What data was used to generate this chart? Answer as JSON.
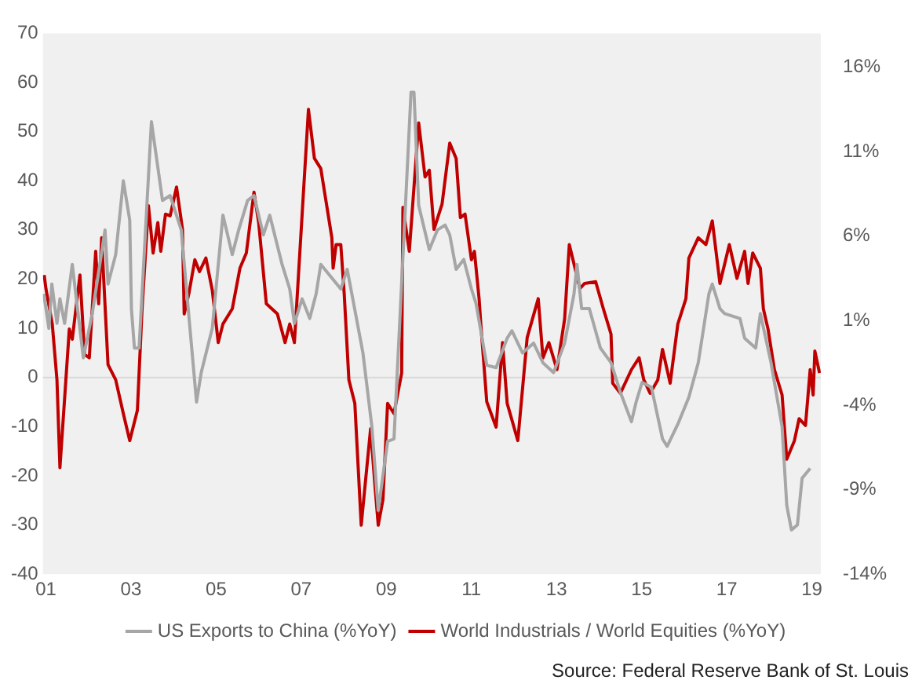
{
  "chart_data": {
    "type": "line",
    "annotations": [
      "Source: Federal Reserve Bank of St. Louis"
    ],
    "xlim": [
      2000.93,
      2019.21
    ],
    "xticks": [
      {
        "value": 2001,
        "label": "01"
      },
      {
        "value": 2003,
        "label": "03"
      },
      {
        "value": 2005,
        "label": "05"
      },
      {
        "value": 2007,
        "label": "07"
      },
      {
        "value": 2009,
        "label": "09"
      },
      {
        "value": 2011,
        "label": "11"
      },
      {
        "value": 2013,
        "label": "13"
      },
      {
        "value": 2015,
        "label": "15"
      },
      {
        "value": 2017,
        "label": "17"
      },
      {
        "value": 2019,
        "label": "19"
      }
    ],
    "ylim": [
      -40,
      70
    ],
    "yticks": [
      -40,
      -30,
      -20,
      -10,
      0,
      10,
      20,
      30,
      40,
      50,
      60,
      70
    ],
    "y2lim": [
      -14,
      18
    ],
    "y2ticks": [
      {
        "value": -14,
        "label": "-14%"
      },
      {
        "value": -9,
        "label": "-9%"
      },
      {
        "value": -4,
        "label": "-4%"
      },
      {
        "value": 1,
        "label": "1%"
      },
      {
        "value": 6,
        "label": "6%"
      },
      {
        "value": 11,
        "label": "11%"
      },
      {
        "value": 16,
        "label": "16%"
      }
    ],
    "grid": false,
    "legend": "bottom",
    "marker": "none",
    "line_style": "solid",
    "ref_lines": [
      {
        "axis": "y",
        "value": 0,
        "color": "#d9d9d9"
      }
    ],
    "series": [
      {
        "name": "US Exports to China (%YoY)",
        "color": "#a6a6a6",
        "x": [
          2000.95,
          2001.07,
          2001.14,
          2001.26,
          2001.33,
          2001.44,
          2001.62,
          2001.88,
          2002.09,
          2002.39,
          2002.46,
          2002.64,
          2002.82,
          2002.97,
          2003.01,
          2003.08,
          2003.19,
          2003.48,
          2003.74,
          2003.92,
          2004.18,
          2004.54,
          2004.65,
          2004.91,
          2005.16,
          2005.38,
          2005.53,
          2005.74,
          2005.89,
          2006.11,
          2006.26,
          2006.55,
          2006.73,
          2006.84,
          2007.02,
          2007.2,
          2007.35,
          2007.46,
          2007.93,
          2008.08,
          2008.19,
          2008.45,
          2008.66,
          2008.81,
          2009.03,
          2009.18,
          2009.58,
          2009.65,
          2009.76,
          2010.01,
          2010.2,
          2010.38,
          2010.49,
          2010.64,
          2010.82,
          2011.0,
          2011.11,
          2011.36,
          2011.58,
          2011.84,
          2011.95,
          2012.2,
          2012.46,
          2012.68,
          2012.93,
          2013.19,
          2013.41,
          2013.48,
          2013.59,
          2013.77,
          2014.03,
          2014.28,
          2014.5,
          2014.76,
          2014.87,
          2015.01,
          2015.23,
          2015.49,
          2015.6,
          2015.85,
          2016.11,
          2016.33,
          2016.58,
          2016.66,
          2016.84,
          2016.95,
          2017.31,
          2017.42,
          2017.68,
          2017.79,
          2018.04,
          2018.3,
          2018.41,
          2018.52,
          2018.66,
          2018.77,
          2018.96
        ],
        "values": [
          17,
          10,
          19,
          11,
          16,
          11,
          23,
          4,
          13,
          30,
          19,
          25,
          40,
          32,
          14,
          6,
          6,
          52,
          36,
          37,
          30,
          -5,
          1,
          10,
          33,
          25,
          30,
          36,
          37,
          29,
          33,
          23,
          18,
          11,
          16,
          12,
          17,
          23,
          18,
          22,
          17,
          5,
          -10,
          -27,
          -13,
          -12.5,
          58,
          58,
          35,
          26,
          30,
          31,
          29,
          22,
          24,
          18,
          15,
          2.5,
          2,
          8,
          9.5,
          5,
          7,
          3,
          1,
          7,
          17,
          23,
          14,
          14,
          6,
          3,
          -3,
          -9,
          -5,
          -1,
          -2,
          -12.5,
          -14,
          -9.5,
          -4,
          3,
          17,
          19,
          14,
          13,
          12,
          8,
          6,
          13,
          3,
          -10,
          -26,
          -31,
          -30,
          -20.5,
          -18.5
        ]
      },
      {
        "name": "World Industrials / World Equities (%YoY)",
        "color": "#c00000",
        "axis": "y2",
        "x": [
          2000.96,
          2001.0,
          2001.15,
          2001.26,
          2001.33,
          2001.44,
          2001.55,
          2001.62,
          2001.8,
          2001.91,
          2002.02,
          2002.17,
          2002.24,
          2002.31,
          2002.46,
          2002.64,
          2002.82,
          2002.97,
          2003.15,
          2003.26,
          2003.41,
          2003.52,
          2003.63,
          2003.7,
          2003.81,
          2003.92,
          2004.07,
          2004.21,
          2004.25,
          2004.36,
          2004.5,
          2004.61,
          2004.76,
          2004.91,
          2005.05,
          2005.16,
          2005.38,
          2005.56,
          2005.71,
          2005.89,
          2006.0,
          2006.18,
          2006.44,
          2006.62,
          2006.73,
          2006.84,
          2007.17,
          2007.31,
          2007.46,
          2007.72,
          2007.75,
          2007.82,
          2007.93,
          2008.01,
          2008.12,
          2008.26,
          2008.41,
          2008.63,
          2008.74,
          2008.81,
          2008.92,
          2009.03,
          2009.18,
          2009.36,
          2009.39,
          2009.54,
          2009.76,
          2009.91,
          2010.01,
          2010.12,
          2010.31,
          2010.49,
          2010.64,
          2010.74,
          2010.85,
          2011.0,
          2011.07,
          2011.18,
          2011.22,
          2011.36,
          2011.58,
          2011.73,
          2011.84,
          2012.09,
          2012.31,
          2012.57,
          2012.68,
          2012.82,
          2013.01,
          2013.19,
          2013.3,
          2013.55,
          2013.66,
          2013.92,
          2014.1,
          2014.28,
          2014.32,
          2014.5,
          2014.76,
          2014.94,
          2015.05,
          2015.2,
          2015.38,
          2015.49,
          2015.67,
          2015.85,
          2016.04,
          2016.11,
          2016.33,
          2016.51,
          2016.66,
          2016.84,
          2017.06,
          2017.24,
          2017.42,
          2017.5,
          2017.61,
          2017.79,
          2017.86,
          2017.97,
          2018.12,
          2018.3,
          2018.41,
          2018.59,
          2018.7,
          2018.85,
          2018.96,
          2019.03,
          2019.07,
          2019.18
        ],
        "values": [
          3.7,
          2.9,
          0.8,
          -2.5,
          -7.7,
          -3.6,
          0.5,
          -0.1,
          3.7,
          -1,
          -1.2,
          5.1,
          2,
          5.9,
          -1.6,
          -2.5,
          -4.5,
          -6.1,
          -4.3,
          1.7,
          7.8,
          5,
          6.8,
          5.1,
          7.3,
          7.2,
          8.9,
          6.4,
          1.4,
          2.6,
          4.6,
          3.9,
          4.7,
          2.8,
          -0.3,
          0.8,
          1.7,
          4.1,
          5,
          8.6,
          6.8,
          2,
          1.4,
          -0.3,
          0.8,
          -0.3,
          13.5,
          10.6,
          10,
          5.9,
          4.1,
          5.5,
          5.5,
          2.6,
          -2.5,
          -3.9,
          -11.1,
          -5.4,
          -9,
          -11.1,
          -9.6,
          -3.9,
          -4.5,
          -2.1,
          7.7,
          5.1,
          12.7,
          9.5,
          9.9,
          6.4,
          7.9,
          11.5,
          10.6,
          7.1,
          7.3,
          4.6,
          5.1,
          2.3,
          0.8,
          -3.8,
          -5.3,
          -0.3,
          -3.9,
          -6.1,
          0,
          2.3,
          -1.2,
          -0.3,
          -1.9,
          1.1,
          5.5,
          2.9,
          3.2,
          3.3,
          1.7,
          0.2,
          -2.7,
          -3.3,
          -1.9,
          -1.2,
          -2.5,
          -3.3,
          -2.5,
          -0.7,
          -2.7,
          0.8,
          2.3,
          4.7,
          5.9,
          5.5,
          6.9,
          3.2,
          5.5,
          3.5,
          5.1,
          3.2,
          5,
          4.1,
          1.7,
          0.5,
          -1.9,
          -3.4,
          -7.2,
          -6.1,
          -4.8,
          -5.2,
          -1.9,
          -3.4,
          -0.8,
          -2.1
        ]
      }
    ]
  }
}
